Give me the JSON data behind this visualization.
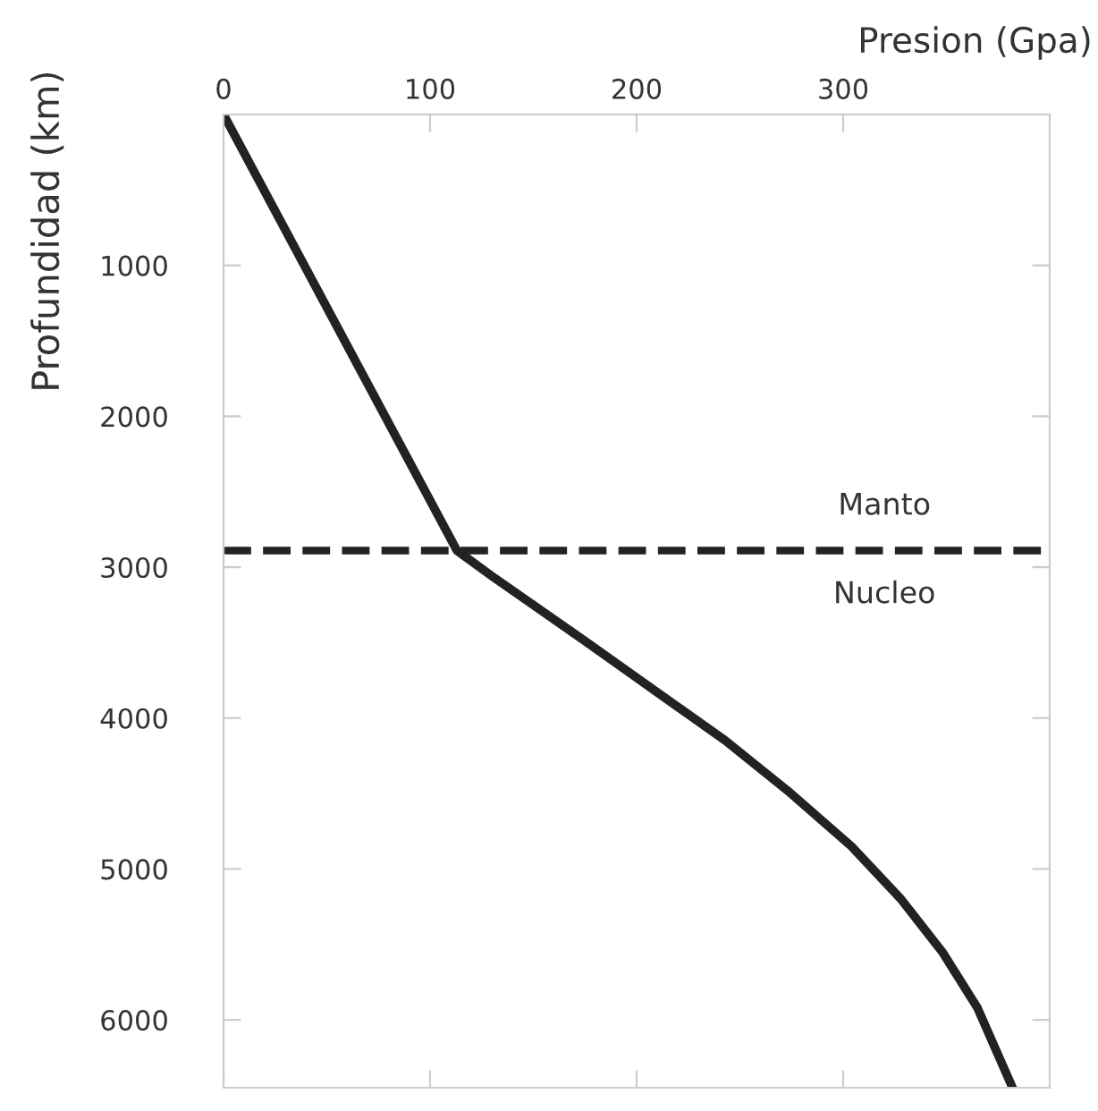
{
  "chart_data": {
    "type": "line",
    "xlabel": "Presion (Gpa)",
    "ylabel": "Profundidad (km)",
    "xlim": [
      0,
      400
    ],
    "xticks": [
      0,
      100,
      200,
      300
    ],
    "ylim": [
      6450,
      0
    ],
    "yticks": [
      1000,
      2000,
      3000,
      4000,
      5000,
      6000
    ],
    "grid": false,
    "line_style": "solid",
    "marker": "none",
    "series": [
      {
        "color": "#222222",
        "x": [
          0,
          113,
          130,
          174,
          208,
          243,
          273,
          304,
          328,
          348,
          365,
          382
        ],
        "values": [
          0,
          2890,
          3060,
          3480,
          3810,
          4150,
          4480,
          4850,
          5200,
          5550,
          5920,
          6450
        ]
      }
    ],
    "ref_lines": [
      {
        "axis": "y",
        "value": 2890,
        "color": "#222222",
        "line_style": "dashed"
      }
    ],
    "annotations": [
      "Manto",
      "Nucleo"
    ]
  }
}
